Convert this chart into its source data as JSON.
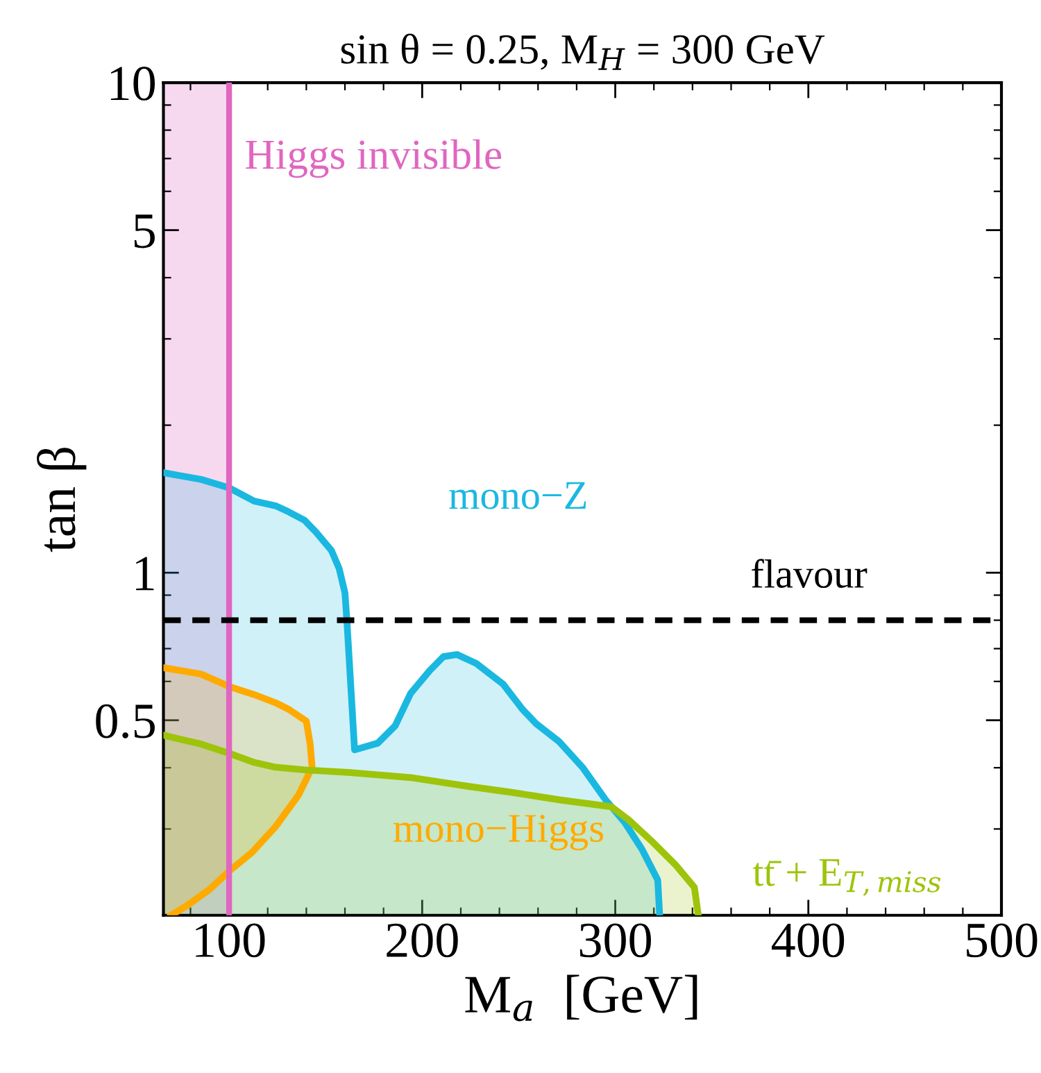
{
  "chart_data": {
    "type": "area",
    "title": "sin θ = 0.25, M$_{H}$ = 300 GeV",
    "xlabel": "M$_{a}$  [GeV]",
    "ylabel": "tan β",
    "xlim": [
      66,
      500
    ],
    "xticks": [
      100,
      200,
      300,
      400,
      500
    ],
    "ylim": [
      0.2,
      10
    ],
    "yticks": [
      0.5,
      1,
      5,
      10
    ],
    "log": "y",
    "grid": false,
    "legend": false,
    "series": [
      {
        "name": "mono−Z",
        "color": "#1ab8e0",
        "x": [
          66,
          85.5,
          100,
          113,
          124,
          131,
          139,
          145,
          153,
          157,
          160,
          161,
          165,
          177,
          186,
          194,
          204,
          211,
          218,
          228,
          242,
          252,
          259,
          271,
          283,
          295,
          305,
          314,
          322,
          323
        ],
        "values": [
          1.6,
          1.55,
          1.49,
          1.4,
          1.37,
          1.33,
          1.28,
          1.21,
          1.11,
          1.02,
          0.91,
          0.8,
          0.435,
          0.449,
          0.487,
          0.567,
          0.632,
          0.674,
          0.681,
          0.653,
          0.592,
          0.526,
          0.492,
          0.452,
          0.401,
          0.344,
          0.309,
          0.272,
          0.236,
          0.2
        ]
      },
      {
        "name": "mono−Higgs",
        "color": "#ffaa00",
        "x": [
          66,
          85.5,
          100,
          113,
          124,
          131,
          140,
          142,
          143,
          136,
          124,
          112,
          100,
          90,
          78,
          70
        ],
        "values": [
          0.64,
          0.621,
          0.586,
          0.564,
          0.543,
          0.526,
          0.498,
          0.447,
          0.401,
          0.352,
          0.303,
          0.269,
          0.246,
          0.226,
          0.209,
          0.2
        ]
      },
      {
        "name": "tt̄ + E$_{T,miss}$",
        "color": "#9dc40a",
        "x": [
          66,
          85.5,
          100,
          113,
          124,
          139,
          163,
          194,
          223,
          247,
          271,
          298,
          307,
          319,
          331,
          341,
          343
        ],
        "values": [
          0.466,
          0.447,
          0.428,
          0.41,
          0.401,
          0.396,
          0.391,
          0.382,
          0.367,
          0.356,
          0.344,
          0.333,
          0.313,
          0.283,
          0.254,
          0.228,
          0.2
        ]
      }
    ],
    "bands": [
      {
        "axis": "x",
        "from": 66,
        "to": 100,
        "label": "Higgs invisible",
        "color": "#e066c0"
      }
    ],
    "ref_lines": [
      {
        "axis": "x",
        "value": 100,
        "label": null,
        "color": "#e066c0",
        "line_style": "solid"
      },
      {
        "axis": "y",
        "value": 0.8,
        "label": "flavour",
        "color": "#000000",
        "line_style": "dashed"
      }
    ]
  }
}
